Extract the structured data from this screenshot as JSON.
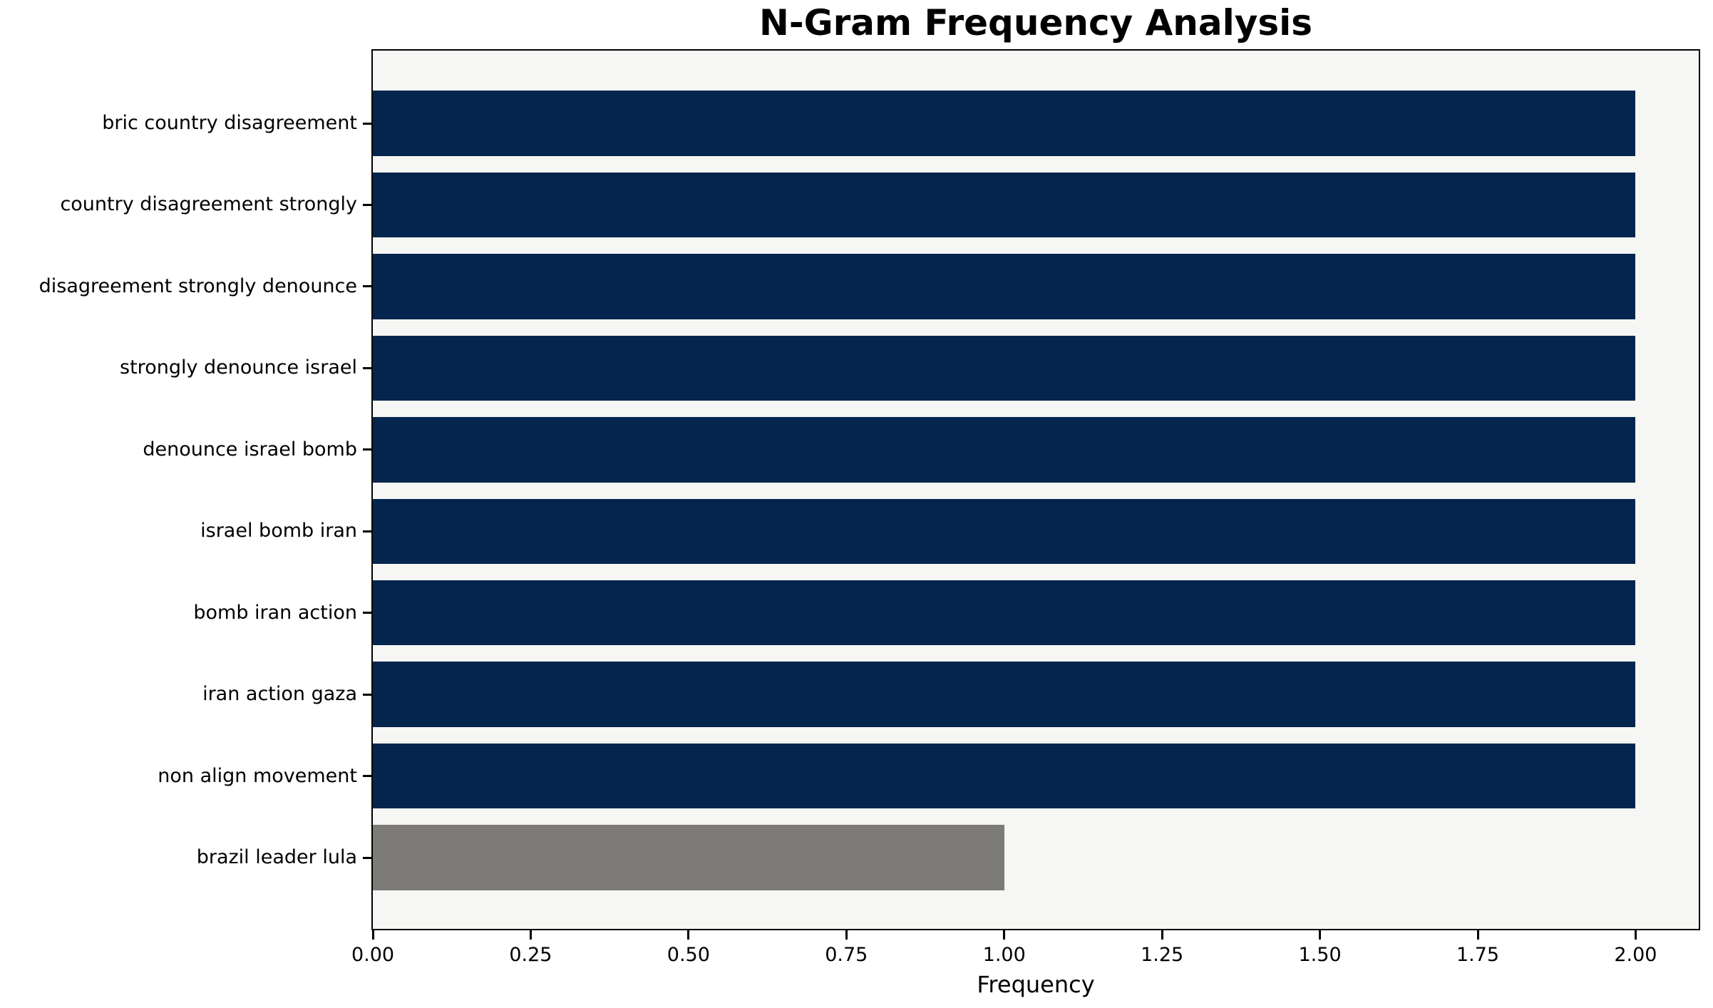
{
  "chart_data": {
    "type": "bar",
    "orientation": "horizontal",
    "title": "N-Gram Frequency Analysis",
    "xlabel": "Frequency",
    "ylabel": "",
    "categories": [
      "bric country disagreement",
      "country disagreement strongly",
      "disagreement strongly denounce",
      "strongly denounce israel",
      "denounce israel bomb",
      "israel bomb iran",
      "bomb iran action",
      "iran action gaza",
      "non align movement",
      "brazil leader lula"
    ],
    "values": [
      2,
      2,
      2,
      2,
      2,
      2,
      2,
      2,
      2,
      1
    ],
    "bar_colors": [
      "#03254e",
      "#03254e",
      "#03254e",
      "#03254e",
      "#03254e",
      "#03254e",
      "#03254e",
      "#03254e",
      "#03254e",
      "#7c7b78"
    ],
    "xlim": [
      0,
      2.1
    ],
    "xticks": [
      0,
      0.25,
      0.5,
      0.75,
      1.0,
      1.25,
      1.5,
      1.75,
      2.0
    ],
    "xtick_labels": [
      "0.00",
      "0.25",
      "0.50",
      "0.75",
      "1.00",
      "1.25",
      "1.50",
      "1.75",
      "2.00"
    ],
    "grid": false,
    "legend": "none",
    "colors": {
      "highlight_bar": "#03254e",
      "muted_bar": "#7c7b78",
      "plot_background": "#f6f6f4",
      "figure_background": "#ffffff",
      "axis": "#000000",
      "text": "#000000"
    }
  }
}
